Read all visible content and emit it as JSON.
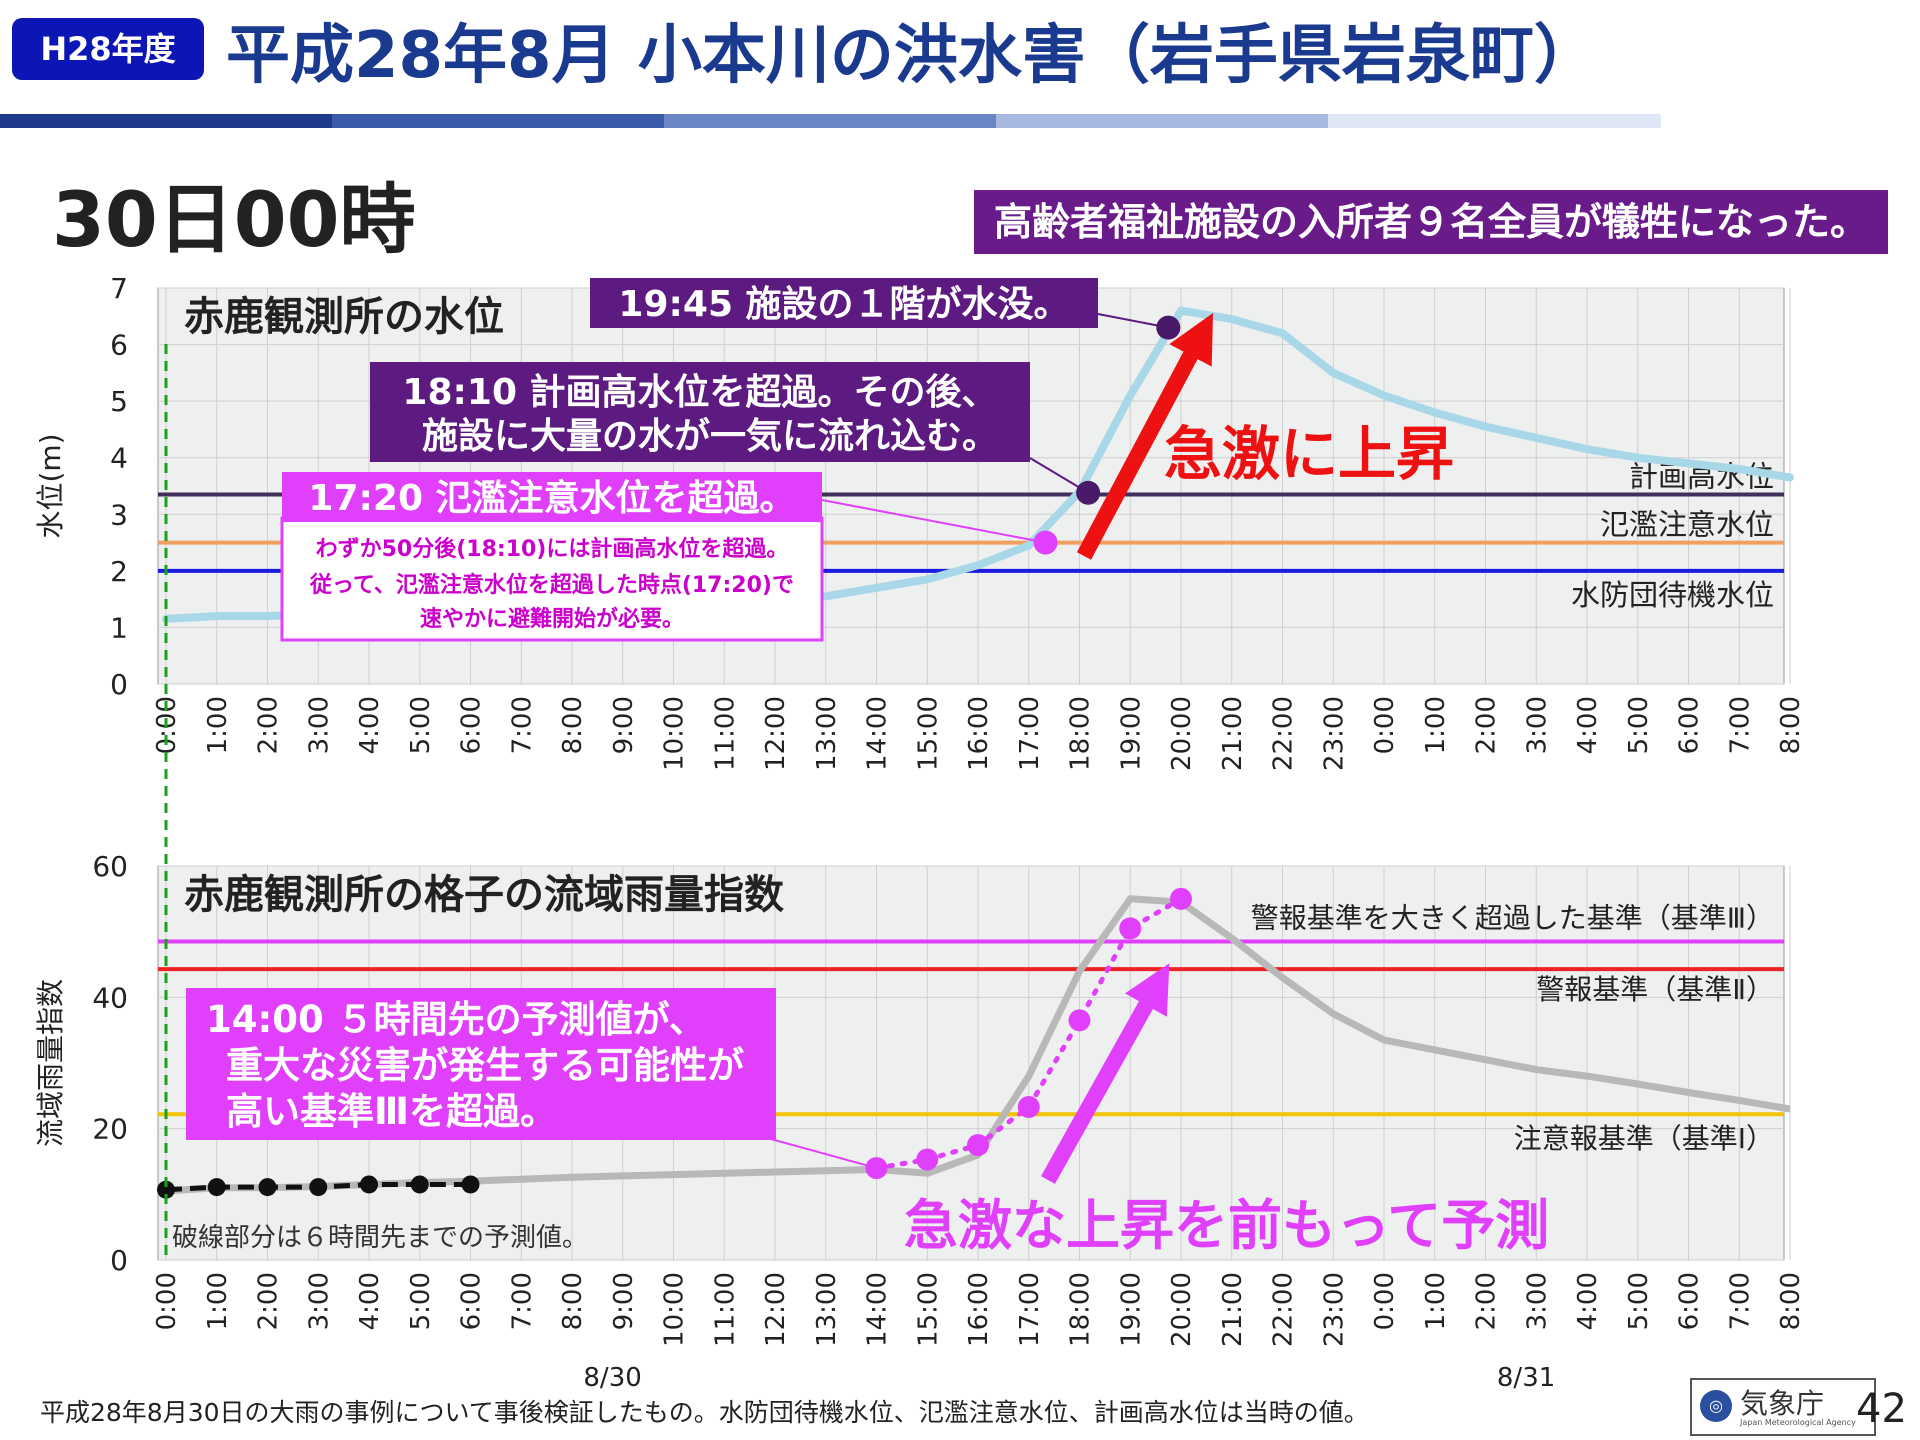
{
  "header": {
    "badge": "H28年度",
    "title": "平成28年8月 小本川の洪水害（岩手県岩泉町）",
    "subtitle": "30日00時",
    "victims_note": "高齢者福祉施設の入所者９名全員が犠牲になった。",
    "bar_colors": [
      "#1f3a8a",
      "#3a5ba8",
      "#6a86c4",
      "#a7b9e0",
      "#dfe6f5"
    ]
  },
  "footer": {
    "note": "平成28年8月30日の大雨の事例について事後検証したもの。水防団待機水位、氾濫注意水位、計画高水位は当時の値。",
    "agency_logo": "気象庁",
    "agency_logo_en": "Japan Meteorological Agency",
    "page_number": "42"
  },
  "chart_data": [
    {
      "type": "line",
      "title": "赤鹿観測所の水位",
      "ylabel": "水位(m)",
      "ylim": [
        0,
        7
      ],
      "yticks": [
        "0",
        "1",
        "2",
        "3",
        "4",
        "5",
        "6",
        "7"
      ],
      "xticks": [
        "0:00",
        "1:00",
        "2:00",
        "3:00",
        "4:00",
        "5:00",
        "6:00",
        "7:00",
        "8:00",
        "9:00",
        "10:00",
        "11:00",
        "12:00",
        "13:00",
        "14:00",
        "15:00",
        "16:00",
        "17:00",
        "18:00",
        "19:00",
        "20:00",
        "21:00",
        "22:00",
        "23:00",
        "0:00",
        "1:00",
        "2:00",
        "3:00",
        "4:00",
        "5:00",
        "6:00",
        "7:00",
        "8:00"
      ],
      "grid": true,
      "series": [
        {
          "color": "#a8d8e8",
          "x": [
            0,
            1,
            2,
            3,
            4,
            5,
            6,
            7,
            8,
            9,
            10,
            11,
            12,
            13,
            14,
            15,
            16,
            17,
            18,
            19,
            20,
            21,
            22,
            23,
            24,
            25,
            26,
            27,
            28,
            29,
            30,
            31,
            32
          ],
          "values": [
            1.15,
            1.2,
            1.2,
            1.25,
            1.3,
            1.32,
            1.35,
            1.35,
            1.38,
            1.4,
            1.42,
            1.45,
            1.5,
            1.55,
            1.7,
            1.85,
            2.1,
            2.45,
            3.4,
            5.1,
            6.6,
            6.45,
            6.2,
            5.5,
            5.1,
            4.8,
            4.55,
            4.35,
            4.15,
            4.0,
            3.9,
            3.8,
            3.65
          ]
        }
      ],
      "thresholds": [
        {
          "label": "計画高水位",
          "value": 3.35,
          "color": "#3f2f5a"
        },
        {
          "label": "氾濫注意水位",
          "value": 2.5,
          "color": "#f0a060"
        },
        {
          "label": "水防団待機水位",
          "value": 2.0,
          "color": "#1a1ae0"
        }
      ],
      "markers": [
        {
          "x": 17.33,
          "y": 2.5,
          "color": "#e040fb"
        },
        {
          "x": 18.17,
          "y": 3.38,
          "color": "#4a1a6a"
        },
        {
          "x": 19.75,
          "y": 6.3,
          "color": "#4a1a6a"
        }
      ],
      "annotations": {
        "a1945": "19:45 施設の１階が水没。",
        "a1810_l1": "18:10 計画高水位を超過。その後、",
        "a1810_l2": "施設に大量の水が一気に流れ込む。",
        "a1720": "17:20 氾濫注意水位を超過。",
        "a1720_l1": "わずか50分後(18:10)には計画高水位を超過。",
        "a1720_l2": "従って、氾濫注意水位を超過した時点(17:20)で",
        "a1720_l3": "速やかに避難開始が必要。",
        "rise": "急激に上昇"
      }
    },
    {
      "type": "line",
      "title": "赤鹿観測所の格子の流域雨量指数",
      "ylabel": "流域雨量指数",
      "ylim": [
        0,
        60
      ],
      "yticks": [
        "0",
        "20",
        "40",
        "60"
      ],
      "xticks": [
        "0:00",
        "1:00",
        "2:00",
        "3:00",
        "4:00",
        "5:00",
        "6:00",
        "7:00",
        "8:00",
        "9:00",
        "10:00",
        "11:00",
        "12:00",
        "13:00",
        "14:00",
        "15:00",
        "16:00",
        "17:00",
        "18:00",
        "19:00",
        "20:00",
        "21:00",
        "22:00",
        "23:00",
        "0:00",
        "1:00",
        "2:00",
        "3:00",
        "4:00",
        "5:00",
        "6:00",
        "7:00",
        "8:00"
      ],
      "date_labels": [
        "8/30",
        "8/31"
      ],
      "grid": true,
      "series": [
        {
          "color": "#b8b8b8",
          "style": "solid",
          "x": [
            0,
            1,
            2,
            3,
            4,
            5,
            6,
            7,
            8,
            9,
            10,
            11,
            12,
            13,
            14,
            15,
            16,
            17,
            18,
            19,
            20,
            21,
            22,
            23,
            24,
            25,
            26,
            27,
            28,
            29,
            30,
            31,
            32
          ],
          "values": [
            10.5,
            11,
            11,
            11.2,
            11.5,
            11.8,
            12,
            12.3,
            12.6,
            12.8,
            13,
            13.2,
            13.4,
            13.6,
            13.8,
            13.2,
            16,
            28,
            44,
            55,
            54.5,
            49,
            43,
            37.5,
            33.5,
            32,
            30.5,
            29,
            28,
            26.8,
            25.5,
            24.3,
            23
          ]
        },
        {
          "color": "#111111",
          "style": "dashed",
          "x": [
            0,
            1,
            2,
            3,
            4,
            5,
            6
          ],
          "values": [
            10.7,
            11.1,
            11.1,
            11.1,
            11.5,
            11.5,
            11.5
          ]
        },
        {
          "color": "#e040fb",
          "style": "dotted",
          "x": [
            14,
            15,
            16,
            17,
            18,
            19,
            20
          ],
          "values": [
            14,
            15.3,
            17.5,
            23.3,
            36.5,
            50.5,
            55
          ]
        }
      ],
      "thresholds": [
        {
          "label": "警報基準を大きく超過した基準（基準Ⅲ）",
          "value": 48.5,
          "color": "#e040fb"
        },
        {
          "label": "警報基準（基準Ⅱ）",
          "value": 44.3,
          "color": "#ee2222"
        },
        {
          "label": "注意報基準（基準Ⅰ）",
          "value": 22.2,
          "color": "#f2c400"
        }
      ],
      "annotations": {
        "a1400_l1": "14:00 ５時間先の予測値が、",
        "a1400_l2": "重大な災害が発生する可能性が",
        "a1400_l3": "高い基準Ⅲを超過。",
        "predict": "急激な上昇を前もって予測",
        "dash_note": "破線部分は６時間先までの予測値。"
      }
    }
  ]
}
